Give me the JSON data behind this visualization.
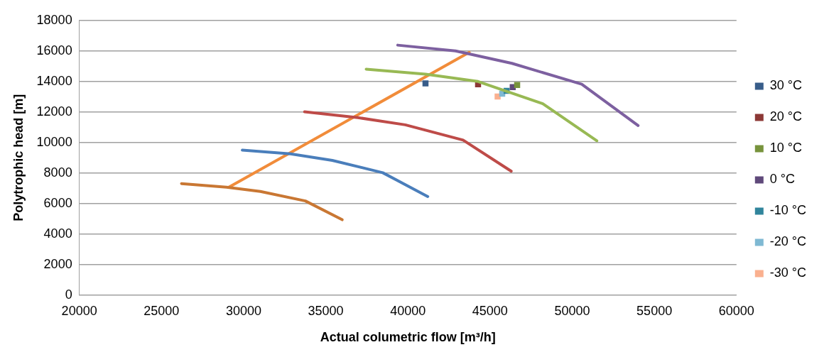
{
  "chart_data": {
    "type": "line",
    "xlabel": "Actual columetric flow [m³/h]",
    "ylabel": "Polytrophic head [m]",
    "xlim": [
      20000,
      60000
    ],
    "xticks": [
      20000,
      25000,
      30000,
      35000,
      40000,
      45000,
      50000,
      55000,
      60000
    ],
    "ylim": [
      0,
      18000
    ],
    "yticks": [
      0,
      2000,
      4000,
      6000,
      8000,
      10000,
      12000,
      14000,
      16000,
      18000
    ],
    "grid": "y",
    "legend": "right",
    "series": [
      {
        "type": "line",
        "marker": "none",
        "color": "#4a7ebb",
        "x": [
          29920,
          32850,
          35400,
          38470,
          41210
        ],
        "values": [
          9500,
          9260,
          8830,
          8020,
          6460
        ]
      },
      {
        "type": "line",
        "marker": "none",
        "color": "#be4b48",
        "x": [
          33710,
          36960,
          39840,
          43360,
          46290
        ],
        "values": [
          12010,
          11630,
          11160,
          10160,
          8120
        ]
      },
      {
        "type": "line",
        "marker": "none",
        "color": "#98b954",
        "x": [
          37460,
          41070,
          44270,
          48210,
          51500
        ],
        "values": [
          14810,
          14480,
          14000,
          12540,
          10110
        ]
      },
      {
        "type": "line",
        "marker": "none",
        "color": "#7d60a0",
        "x": [
          39380,
          42900,
          46330,
          50580,
          54010
        ],
        "values": [
          16380,
          16000,
          15190,
          13820,
          11110
        ]
      },
      {
        "type": "line",
        "marker": "none",
        "color": "#c97733",
        "x": [
          26220,
          28960,
          31020,
          33760,
          36000
        ],
        "values": [
          7310,
          7070,
          6790,
          6170,
          4940
        ]
      },
      {
        "type": "line",
        "marker": "none",
        "color": "#f18c3a",
        "x": [
          29100,
          43730
        ],
        "values": [
          7070,
          15910
        ]
      },
      {
        "type": "scatter",
        "marker": "square",
        "name": "30 °C",
        "color": "#385d8a",
        "x": [
          41070
        ],
        "values": [
          13870
        ]
      },
      {
        "type": "scatter",
        "marker": "square",
        "name": "20 °C",
        "color": "#8c3836",
        "x": [
          44270
        ],
        "values": [
          13820
        ]
      },
      {
        "type": "scatter",
        "marker": "square",
        "name": "10 °C",
        "color": "#77933c",
        "x": [
          46650
        ],
        "values": [
          13770
        ]
      },
      {
        "type": "scatter",
        "marker": "square",
        "name": "0 °C",
        "color": "#5f497a",
        "x": [
          46380
        ],
        "values": [
          13630
        ]
      },
      {
        "type": "scatter",
        "marker": "square",
        "name": "-10 °C",
        "color": "#31859c",
        "x": [
          46010
        ],
        "values": [
          13390
        ]
      },
      {
        "type": "scatter",
        "marker": "square",
        "name": "-20 °C",
        "color": "#7fb9d3",
        "x": [
          45740
        ],
        "values": [
          13200
        ]
      },
      {
        "type": "scatter",
        "marker": "square",
        "name": "-30 °C",
        "color": "#fab08f",
        "x": [
          45460
        ],
        "values": [
          13010
        ]
      }
    ]
  }
}
